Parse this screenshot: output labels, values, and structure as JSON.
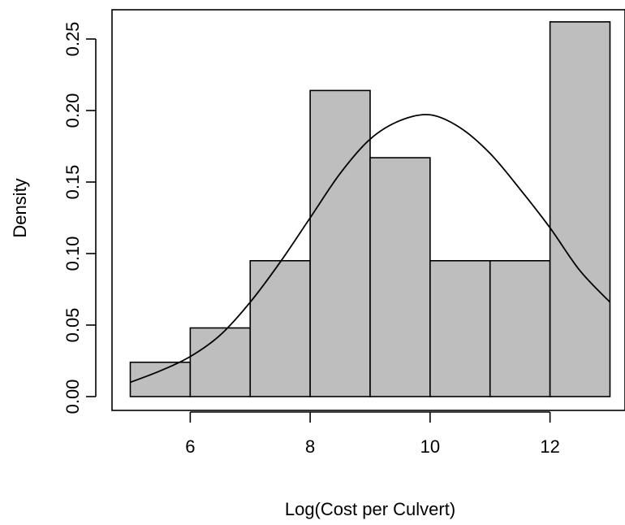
{
  "chart_data": {
    "type": "bar",
    "title": "",
    "xlabel": "Log(Cost per Culvert)",
    "ylabel": "Density",
    "xlim": [
      5,
      13
    ],
    "ylim": [
      0,
      0.26
    ],
    "x_ticks": [
      6,
      8,
      10,
      12
    ],
    "x_tick_labels": [
      "6",
      "8",
      "10",
      "12"
    ],
    "y_ticks": [
      0.0,
      0.05,
      0.1,
      0.15,
      0.2,
      0.25
    ],
    "y_tick_labels": [
      "0.00",
      "0.05",
      "0.10",
      "0.15",
      "0.20",
      "0.25"
    ],
    "bins": [
      {
        "x0": 5,
        "x1": 6,
        "value": 0.024
      },
      {
        "x0": 6,
        "x1": 7,
        "value": 0.048
      },
      {
        "x0": 7,
        "x1": 8,
        "value": 0.095
      },
      {
        "x0": 8,
        "x1": 9,
        "value": 0.214
      },
      {
        "x0": 9,
        "x1": 10,
        "value": 0.167
      },
      {
        "x0": 10,
        "x1": 11,
        "value": 0.095
      },
      {
        "x0": 11,
        "x1": 12,
        "value": 0.095
      },
      {
        "x0": 12,
        "x1": 13,
        "value": 0.262
      }
    ],
    "density_curve": {
      "x": [
        5.0,
        5.5,
        6.0,
        6.5,
        7.0,
        7.5,
        8.0,
        8.5,
        9.0,
        9.5,
        10.0,
        10.5,
        11.0,
        11.5,
        12.0,
        12.5,
        13.0
      ],
      "y": [
        0.01,
        0.018,
        0.028,
        0.043,
        0.066,
        0.094,
        0.125,
        0.156,
        0.18,
        0.193,
        0.197,
        0.188,
        0.17,
        0.145,
        0.118,
        0.088,
        0.066
      ]
    },
    "colors": {
      "bar_fill": "#bebebe",
      "bar_stroke": "#000000",
      "curve": "#000000",
      "background": "#ffffff"
    },
    "grid": false,
    "legend": "none"
  }
}
